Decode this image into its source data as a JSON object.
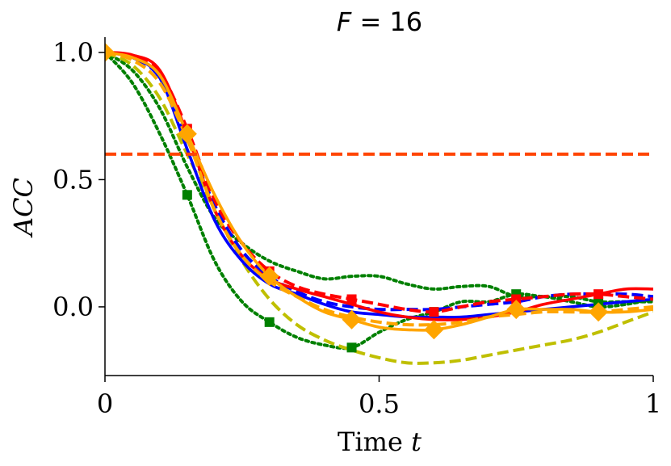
{
  "chart_data": {
    "type": "line",
    "title_var": "F",
    "title_rest": " = 16",
    "xlabel_text": "Time ",
    "xlabel_var": "t",
    "ylabel": "ACC",
    "xlim": [
      0,
      1
    ],
    "ylim": [
      -0.27,
      1.06
    ],
    "x_ticks": [
      {
        "value": 0,
        "label": "0"
      },
      {
        "value": 0.5,
        "label": "0.5"
      },
      {
        "value": 1,
        "label": "1"
      }
    ],
    "y_ticks": [
      {
        "value": 0.0,
        "label": "0.0"
      },
      {
        "value": 0.5,
        "label": "0.5"
      },
      {
        "value": 1.0,
        "label": "1.0"
      }
    ],
    "threshold": {
      "y": 0.6,
      "color": "#FF4500",
      "dash": "dashed"
    },
    "series": [
      {
        "name": "green-dotted",
        "color": "#008000",
        "dash": "dotted",
        "x": [
          0,
          0.05,
          0.1,
          0.15,
          0.2,
          0.25,
          0.3,
          0.35,
          0.4,
          0.45,
          0.5,
          0.55,
          0.6,
          0.65,
          0.7,
          0.75,
          0.8,
          0.85,
          0.9,
          0.95,
          1.0
        ],
        "values": [
          1.0,
          0.93,
          0.78,
          0.55,
          0.35,
          0.25,
          0.18,
          0.14,
          0.11,
          0.12,
          0.12,
          0.09,
          0.07,
          0.08,
          0.08,
          0.04,
          0.04,
          0.02,
          0.0,
          0.01,
          0.03
        ]
      },
      {
        "name": "green-dotted-markers",
        "color": "#008000",
        "dash": "dotted",
        "marker": "square",
        "x": [
          0,
          0.05,
          0.1,
          0.15,
          0.2,
          0.25,
          0.3,
          0.35,
          0.4,
          0.45,
          0.5,
          0.55,
          0.6,
          0.65,
          0.7,
          0.75,
          0.8,
          0.85,
          0.9,
          0.95,
          1.0
        ],
        "values": [
          1.0,
          0.88,
          0.68,
          0.44,
          0.18,
          0.02,
          -0.06,
          -0.12,
          -0.15,
          -0.16,
          -0.1,
          -0.05,
          -0.02,
          0.02,
          0.02,
          0.05,
          0.04,
          0.04,
          0.02,
          0.02,
          0.02
        ],
        "marker_idx": [
          0,
          3,
          6,
          9,
          12,
          15,
          18
        ]
      },
      {
        "name": "olive-dashed",
        "color": "#BFBF00",
        "dash": "dashed",
        "x": [
          0,
          0.05,
          0.1,
          0.15,
          0.2,
          0.25,
          0.3,
          0.35,
          0.4,
          0.45,
          0.5,
          0.55,
          0.6,
          0.65,
          0.7,
          0.75,
          0.8,
          0.85,
          0.9,
          0.95,
          1.0
        ],
        "values": [
          1.0,
          0.95,
          0.82,
          0.6,
          0.38,
          0.18,
          0.03,
          -0.07,
          -0.13,
          -0.17,
          -0.2,
          -0.22,
          -0.22,
          -0.21,
          -0.19,
          -0.17,
          -0.15,
          -0.13,
          -0.1,
          -0.06,
          -0.02
        ]
      },
      {
        "name": "blue-solid",
        "color": "#0000FF",
        "dash": "solid",
        "x": [
          0,
          0.05,
          0.1,
          0.15,
          0.2,
          0.25,
          0.3,
          0.35,
          0.4,
          0.45,
          0.5,
          0.55,
          0.6,
          0.65,
          0.7,
          0.75,
          0.8,
          0.85,
          0.9,
          0.95,
          1.0
        ],
        "values": [
          1.0,
          0.98,
          0.9,
          0.62,
          0.34,
          0.18,
          0.09,
          0.05,
          0.01,
          -0.02,
          -0.03,
          -0.04,
          -0.04,
          -0.04,
          -0.03,
          -0.02,
          -0.01,
          0.0,
          0.01,
          0.02,
          0.03
        ]
      },
      {
        "name": "blue-dashed",
        "color": "#0000FF",
        "dash": "dashed",
        "x": [
          0,
          0.05,
          0.1,
          0.15,
          0.2,
          0.25,
          0.3,
          0.35,
          0.4,
          0.45,
          0.5,
          0.55,
          0.6,
          0.65,
          0.7,
          0.75,
          0.8,
          0.85,
          0.9,
          0.95,
          1.0
        ],
        "values": [
          1.0,
          0.98,
          0.9,
          0.66,
          0.4,
          0.22,
          0.12,
          0.06,
          0.02,
          0.0,
          -0.01,
          -0.01,
          -0.01,
          0.0,
          0.01,
          0.02,
          0.04,
          0.05,
          0.05,
          0.05,
          0.04
        ]
      },
      {
        "name": "red-solid",
        "color": "#FF0000",
        "dash": "solid",
        "x": [
          0,
          0.05,
          0.1,
          0.15,
          0.2,
          0.25,
          0.3,
          0.35,
          0.4,
          0.45,
          0.5,
          0.55,
          0.6,
          0.65,
          0.7,
          0.75,
          0.8,
          0.85,
          0.9,
          0.95,
          1.0
        ],
        "values": [
          1.0,
          0.99,
          0.93,
          0.68,
          0.38,
          0.2,
          0.11,
          0.07,
          0.04,
          0.01,
          -0.02,
          -0.04,
          -0.05,
          -0.05,
          -0.04,
          -0.02,
          0.01,
          0.03,
          0.05,
          0.07,
          0.07
        ]
      },
      {
        "name": "red-dashed-markers",
        "color": "#FF0000",
        "dash": "dashed",
        "marker": "square",
        "x": [
          0,
          0.05,
          0.1,
          0.15,
          0.2,
          0.25,
          0.3,
          0.35,
          0.4,
          0.45,
          0.5,
          0.55,
          0.6,
          0.65,
          0.7,
          0.75,
          0.8,
          0.85,
          0.9,
          0.95,
          1.0
        ],
        "values": [
          1.0,
          0.98,
          0.92,
          0.7,
          0.42,
          0.25,
          0.14,
          0.08,
          0.05,
          0.03,
          0.01,
          -0.01,
          -0.02,
          0.0,
          0.02,
          0.03,
          0.04,
          0.05,
          0.05,
          0.04,
          0.03
        ],
        "marker_idx": [
          0,
          3,
          6,
          9,
          12,
          15,
          18
        ]
      },
      {
        "name": "orange-dashed",
        "color": "#FFA500",
        "dash": "dashed",
        "x": [
          0,
          0.05,
          0.1,
          0.15,
          0.2,
          0.25,
          0.3,
          0.35,
          0.4,
          0.45,
          0.5,
          0.55,
          0.6,
          0.65,
          0.7,
          0.75,
          0.8,
          0.85,
          0.9,
          0.95,
          1.0
        ],
        "values": [
          1.0,
          0.97,
          0.88,
          0.66,
          0.38,
          0.2,
          0.1,
          0.04,
          -0.01,
          -0.04,
          -0.06,
          -0.07,
          -0.07,
          -0.06,
          -0.04,
          -0.03,
          -0.02,
          -0.02,
          -0.02,
          -0.01,
          0.0
        ]
      },
      {
        "name": "orange-solid-markers",
        "color": "#FFA500",
        "dash": "solid",
        "marker": "diamond",
        "x": [
          0,
          0.05,
          0.1,
          0.15,
          0.2,
          0.25,
          0.3,
          0.35,
          0.4,
          0.45,
          0.5,
          0.55,
          0.6,
          0.65,
          0.7,
          0.75,
          0.8,
          0.85,
          0.9,
          0.95,
          1.0
        ],
        "values": [
          1.0,
          0.98,
          0.91,
          0.68,
          0.44,
          0.25,
          0.12,
          0.04,
          -0.02,
          -0.05,
          -0.08,
          -0.09,
          -0.09,
          -0.07,
          -0.04,
          -0.01,
          -0.01,
          -0.01,
          -0.02,
          -0.02,
          -0.01
        ],
        "marker_idx": [
          0,
          3,
          6,
          9,
          12,
          15,
          18
        ]
      }
    ]
  }
}
